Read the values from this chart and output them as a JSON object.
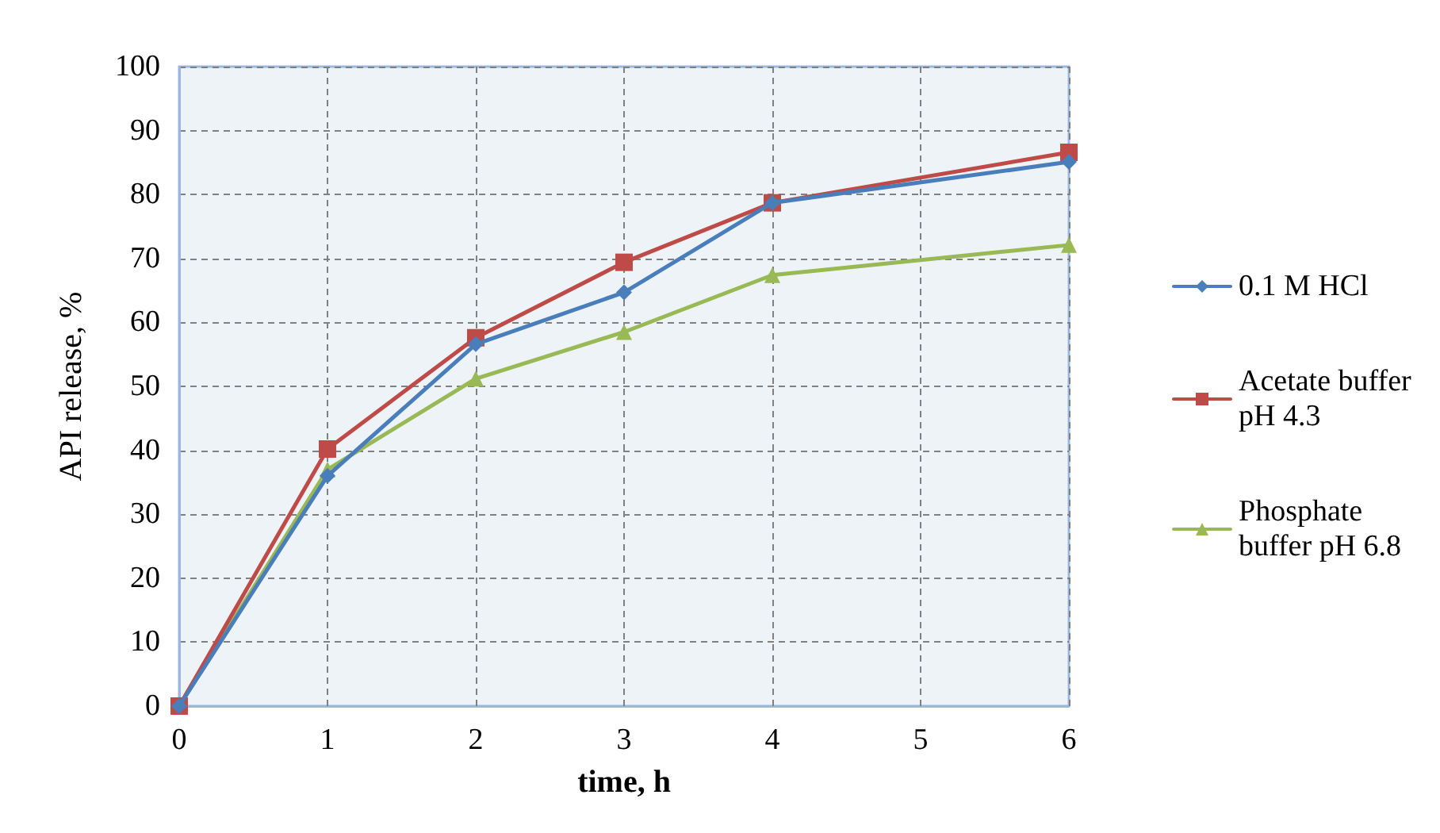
{
  "chart_data": {
    "type": "line",
    "xlabel": "time, h",
    "ylabel": "API release, %",
    "xlim": [
      0,
      6
    ],
    "xticks": [
      0,
      1,
      2,
      3,
      4,
      5,
      6
    ],
    "ylim": [
      0,
      100
    ],
    "yticks": [
      0,
      10,
      20,
      30,
      40,
      50,
      60,
      70,
      80,
      90,
      100
    ],
    "grid": true,
    "legend": "right",
    "series": [
      {
        "name": "0.1 M HCl",
        "color": "#4a7ebb",
        "marker": "diamond",
        "x": [
          0,
          1,
          2,
          3,
          4,
          6
        ],
        "values": [
          0,
          36,
          56.6,
          64.7,
          78.7,
          85.1
        ]
      },
      {
        "name": "Acetate buffer pH 4.3",
        "color": "#be4b48",
        "marker": "square",
        "x": [
          0,
          1,
          2,
          3,
          4,
          6
        ],
        "values": [
          0,
          40.2,
          57.6,
          69.4,
          78.7,
          86.6
        ]
      },
      {
        "name": "Phosphate buffer pH 6.8",
        "color": "#98b954",
        "marker": "triangle",
        "x": [
          0,
          1,
          2,
          3,
          4,
          6
        ],
        "values": [
          0,
          37,
          51.2,
          58.5,
          67.4,
          72.1
        ]
      }
    ]
  }
}
